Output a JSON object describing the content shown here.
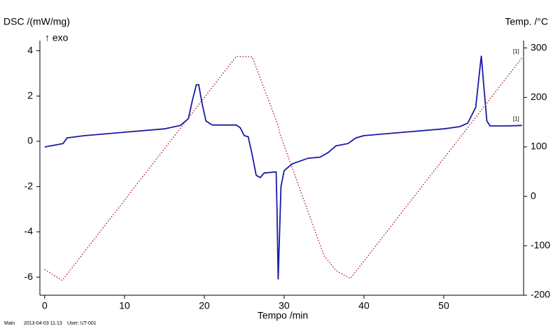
{
  "chart_data": {
    "type": "line",
    "y_label": "DSC /(mW/mg)",
    "y_note": "↑ exo",
    "y2_label": "Temp. /°C",
    "x_label": "Tempo /min",
    "footer": [
      "Main",
      "2013-04-03 11:13",
      "User: UT-001"
    ],
    "xlim": [
      -0.6,
      60
    ],
    "xticks": [
      0,
      10,
      20,
      30,
      40,
      50
    ],
    "ylim": [
      -6.8,
      4.45
    ],
    "yticks": [
      -6,
      -4,
      -2,
      0,
      2,
      4
    ],
    "y2lim": [
      -200,
      315
    ],
    "y2ticks": [
      -200,
      -100,
      0,
      100,
      200,
      300
    ],
    "series": [
      {
        "name": "[1]",
        "color": "#1a1aa6",
        "axis": "y",
        "x": [
          0,
          2.3,
          2.8,
          5,
          10,
          15,
          17,
          18,
          18.5,
          19,
          19.3,
          19.7,
          20.2,
          21,
          24,
          24.5,
          25,
          25.5,
          26,
          26.5,
          27,
          27.5,
          29,
          29.1,
          29.25,
          29.6,
          30,
          31,
          33,
          34.5,
          35.5,
          36.5,
          38,
          39,
          40,
          45,
          50,
          52,
          53,
          54,
          54.4,
          54.7,
          55,
          55.4,
          55.8,
          58,
          59.8
        ],
        "values": [
          -0.25,
          -0.1,
          0.15,
          0.25,
          0.4,
          0.55,
          0.7,
          1.0,
          1.8,
          2.5,
          2.5,
          1.7,
          0.9,
          0.72,
          0.72,
          0.6,
          0.25,
          0.2,
          -0.6,
          -1.5,
          -1.6,
          -1.4,
          -1.35,
          -3,
          -6.1,
          -2,
          -1.3,
          -1.0,
          -0.75,
          -0.7,
          -0.5,
          -0.2,
          -0.1,
          0.15,
          0.25,
          0.4,
          0.55,
          0.65,
          0.8,
          1.5,
          2.8,
          3.78,
          2.5,
          0.9,
          0.68,
          0.68,
          0.7
        ]
      },
      {
        "name": "[1]",
        "color": "#b02020",
        "axis": "y2",
        "x": [
          0,
          1,
          2.2,
          24,
          26,
          29.2,
          29.5,
          35,
          36.5,
          38.3,
          59.8
        ],
        "values": [
          -148,
          -158,
          -170,
          283,
          282,
          145,
          125,
          -120,
          -150,
          -166,
          280
        ]
      }
    ]
  }
}
